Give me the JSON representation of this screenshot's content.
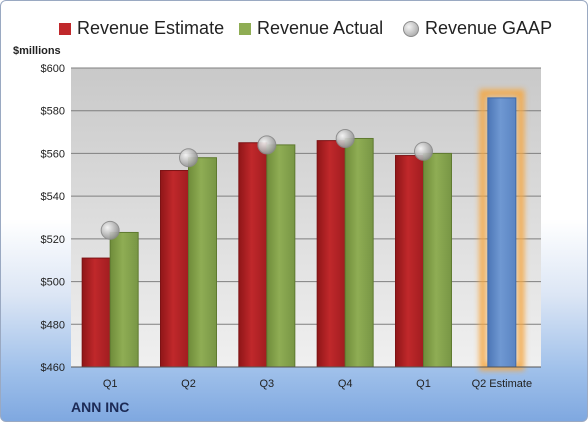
{
  "colors": {
    "estimate": "#c0282b",
    "actual": "#8fad54",
    "gaap": "#b8b8b8",
    "forecast": "#6f98d2",
    "highlight": "#f5a742"
  },
  "legend": [
    {
      "label": "Revenue Estimate",
      "kind": "square",
      "color": "#c0282b"
    },
    {
      "label": "Revenue Actual",
      "kind": "square",
      "color": "#8fad54"
    },
    {
      "label": "Revenue GAAP",
      "kind": "dot",
      "color": "#b8b8b8"
    }
  ],
  "unit_label": "$millions",
  "company": "ANN INC",
  "chart_data": {
    "type": "bar",
    "categories": [
      "Q1",
      "Q2",
      "Q3",
      "Q4",
      "Q1",
      "Q2 Estimate"
    ],
    "series": [
      {
        "name": "Revenue Estimate",
        "values": [
          511,
          552,
          565,
          566,
          559,
          586
        ]
      },
      {
        "name": "Revenue Actual",
        "values": [
          523,
          558,
          564,
          567,
          560,
          null
        ]
      },
      {
        "name": "Revenue GAAP",
        "values": [
          524,
          558,
          564,
          567,
          561,
          null
        ]
      }
    ],
    "ylabel": "$millions",
    "ylim": [
      460,
      600
    ],
    "yticks": [
      460,
      480,
      500,
      520,
      540,
      560,
      580,
      600
    ],
    "ytick_labels": [
      "$460",
      "$480",
      "$500",
      "$520",
      "$540",
      "$560",
      "$580",
      "$600"
    ],
    "grid": true,
    "legend_position": "top"
  }
}
